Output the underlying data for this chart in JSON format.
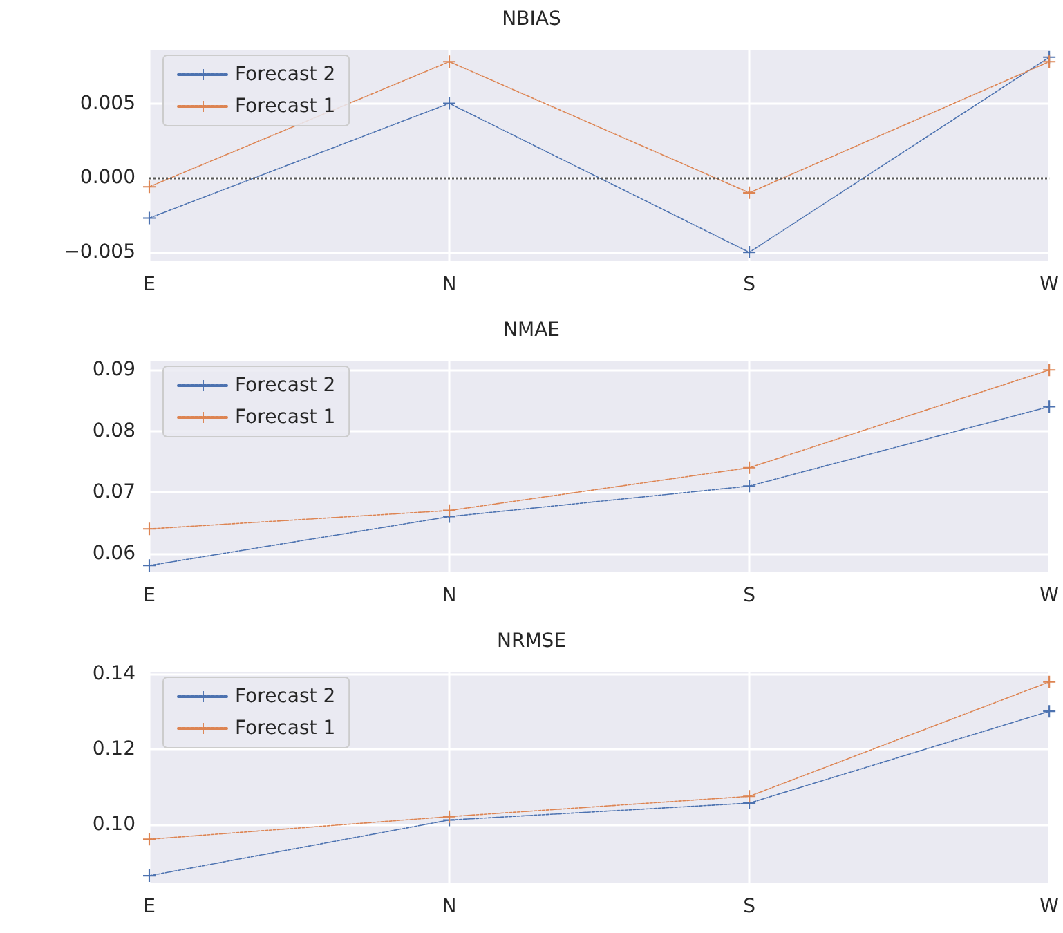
{
  "chart_data": [
    {
      "type": "line",
      "title": "NBIAS",
      "categories": [
        "E",
        "N",
        "S",
        "W"
      ],
      "series": [
        {
          "name": "Forecast 2",
          "color": "#4c72b0",
          "values": [
            -0.0027,
            0.005,
            -0.005,
            0.0081
          ]
        },
        {
          "name": "Forecast 1",
          "color": "#dd8452",
          "values": [
            -0.0006,
            0.0078,
            -0.001,
            0.0078
          ]
        }
      ],
      "ylim": [
        -0.0056,
        0.0086
      ],
      "yticks": [
        {
          "value": -0.005,
          "label": "−0.005"
        },
        {
          "value": 0,
          "label": "0.000"
        },
        {
          "value": 0.005,
          "label": "0.005"
        }
      ],
      "ref_lines": [
        {
          "axis": "y",
          "value": 0,
          "color": "#555555",
          "line_style": "dotted"
        }
      ],
      "grid": true,
      "legend": "top left",
      "marker": "cross",
      "line_style": "dashed"
    },
    {
      "type": "line",
      "title": "NMAE",
      "categories": [
        "E",
        "N",
        "S",
        "W"
      ],
      "series": [
        {
          "name": "Forecast 2",
          "color": "#4c72b0",
          "values": [
            0.058,
            0.066,
            0.071,
            0.084
          ]
        },
        {
          "name": "Forecast 1",
          "color": "#dd8452",
          "values": [
            0.064,
            0.067,
            0.074,
            0.09
          ]
        }
      ],
      "ylim": [
        0.0569,
        0.0915
      ],
      "yticks": [
        {
          "value": 0.06,
          "label": "0.06"
        },
        {
          "value": 0.07,
          "label": "0.07"
        },
        {
          "value": 0.08,
          "label": "0.08"
        },
        {
          "value": 0.09,
          "label": "0.09"
        }
      ],
      "grid": true,
      "legend": "top left",
      "marker": "cross",
      "line_style": "dashed"
    },
    {
      "type": "line",
      "title": "NRMSE",
      "categories": [
        "E",
        "N",
        "S",
        "W"
      ],
      "series": [
        {
          "name": "Forecast 2",
          "color": "#4c72b0",
          "values": [
            0.0863,
            0.1011,
            0.1056,
            0.13
          ]
        },
        {
          "name": "Forecast 1",
          "color": "#dd8452",
          "values": [
            0.096,
            0.102,
            0.1074,
            0.1378
          ]
        }
      ],
      "ylim": [
        0.0843,
        0.1405
      ],
      "yticks": [
        {
          "value": 0.1,
          "label": "0.10"
        },
        {
          "value": 0.12,
          "label": "0.12"
        },
        {
          "value": 0.14,
          "label": "0.14"
        }
      ],
      "grid": true,
      "legend": "top left",
      "marker": "cross",
      "line_style": "dashed"
    }
  ]
}
